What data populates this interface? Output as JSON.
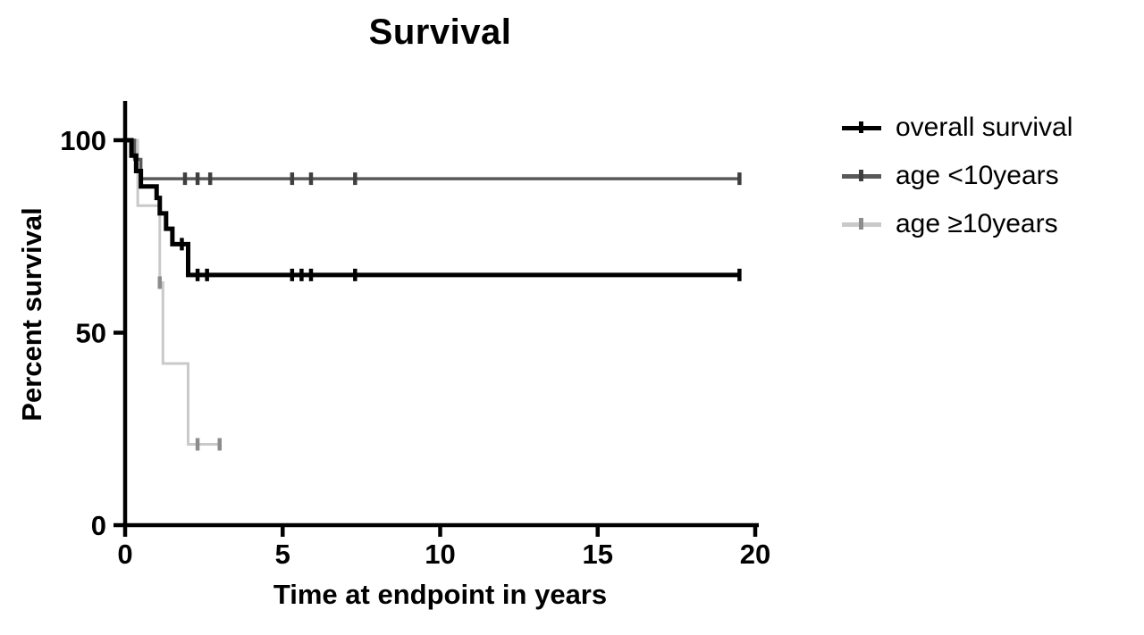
{
  "title": "Survival",
  "legend": {
    "items": [
      {
        "label": "overall survival",
        "color": "#000000",
        "tick_color": "#000000"
      },
      {
        "label": "age <10years",
        "color": "#595959",
        "tick_color": "#3f3f3f"
      },
      {
        "label": "age ≥10years",
        "color": "#c9c9c9",
        "tick_color": "#8c8c8c"
      }
    ]
  },
  "chart_data": {
    "type": "line",
    "subtype": "kaplan-meier-step",
    "title": "Survival",
    "xlabel": "Time at endpoint in years",
    "ylabel": "Percent survival",
    "xlim": [
      0,
      20
    ],
    "ylim": [
      0,
      100
    ],
    "grid": false,
    "legend_position": "right",
    "xticks": [
      {
        "v": 0,
        "label": "0"
      },
      {
        "v": 5,
        "label": "5"
      },
      {
        "v": 10,
        "label": "10"
      },
      {
        "v": 15,
        "label": "15"
      },
      {
        "v": 20,
        "label": "20"
      }
    ],
    "yticks": [
      {
        "v": 0,
        "label": "0"
      },
      {
        "v": 50,
        "label": "50"
      },
      {
        "v": 100,
        "label": "100"
      }
    ],
    "series": [
      {
        "name": "overall survival",
        "color": "#000000",
        "line_width": 5,
        "censor_color": "#000000",
        "points": [
          [
            0,
            100
          ],
          [
            0.2,
            96
          ],
          [
            0.35,
            92
          ],
          [
            0.5,
            88
          ],
          [
            1.0,
            85
          ],
          [
            1.1,
            81
          ],
          [
            1.3,
            77
          ],
          [
            1.5,
            73
          ],
          [
            2.0,
            65
          ],
          [
            19.5,
            65
          ]
        ],
        "censors": [
          [
            1.8,
            73
          ],
          [
            2.3,
            65
          ],
          [
            2.6,
            65
          ],
          [
            5.3,
            65
          ],
          [
            5.6,
            65
          ],
          [
            5.9,
            65
          ],
          [
            7.3,
            65
          ],
          [
            19.5,
            65
          ]
        ]
      },
      {
        "name": "age <10years",
        "color": "#595959",
        "line_width": 3.5,
        "censor_color": "#3f3f3f",
        "points": [
          [
            0,
            100
          ],
          [
            0.3,
            95
          ],
          [
            0.5,
            90
          ],
          [
            19.5,
            90
          ]
        ],
        "censors": [
          [
            1.9,
            90
          ],
          [
            2.3,
            90
          ],
          [
            2.7,
            90
          ],
          [
            5.3,
            90
          ],
          [
            5.9,
            90
          ],
          [
            7.3,
            90
          ],
          [
            19.5,
            90
          ]
        ]
      },
      {
        "name": "age ≥10years",
        "color": "#c9c9c9",
        "line_width": 3,
        "censor_color": "#8c8c8c",
        "points": [
          [
            0,
            100
          ],
          [
            0.4,
            83
          ],
          [
            1.1,
            63
          ],
          [
            1.2,
            42
          ],
          [
            2.0,
            21
          ],
          [
            3.0,
            21
          ]
        ],
        "censors": [
          [
            1.1,
            63
          ],
          [
            2.3,
            21
          ],
          [
            3.0,
            21
          ]
        ]
      }
    ]
  }
}
